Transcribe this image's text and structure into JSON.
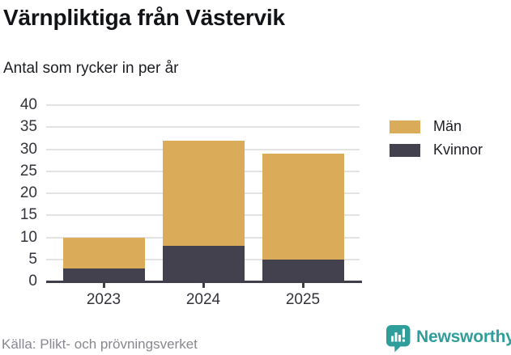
{
  "chart_data": {
    "type": "bar",
    "stacked": true,
    "title": "Värnpliktiga från Västervik",
    "subtitle": "Antal som rycker in per år",
    "categories": [
      "2023",
      "2024",
      "2025"
    ],
    "series": [
      {
        "name": "Män",
        "color": "#daac5a",
        "values": [
          7,
          24,
          24
        ]
      },
      {
        "name": "Kvinnor",
        "color": "#44414f",
        "values": [
          3,
          8,
          5
        ]
      }
    ],
    "totals": [
      10,
      32,
      29
    ],
    "xlabel": "",
    "ylabel": "",
    "ylim": [
      0,
      40
    ],
    "yticks": [
      0,
      5,
      10,
      15,
      20,
      25,
      30,
      35,
      40
    ],
    "grid": true,
    "legend_position": "right"
  },
  "footer": {
    "source": "Källa: Plikt- och prövningsverket",
    "brand": "Newsworthy"
  },
  "colors": {
    "accent_gold": "#daac5a",
    "accent_dark": "#44414f",
    "brand_teal": "#2f9e9b",
    "gridline": "#e3e3e3",
    "axis": "#3f3e4a"
  },
  "icons": {
    "brand_icon": "newsworthy-chart-speech-bubble-icon"
  }
}
